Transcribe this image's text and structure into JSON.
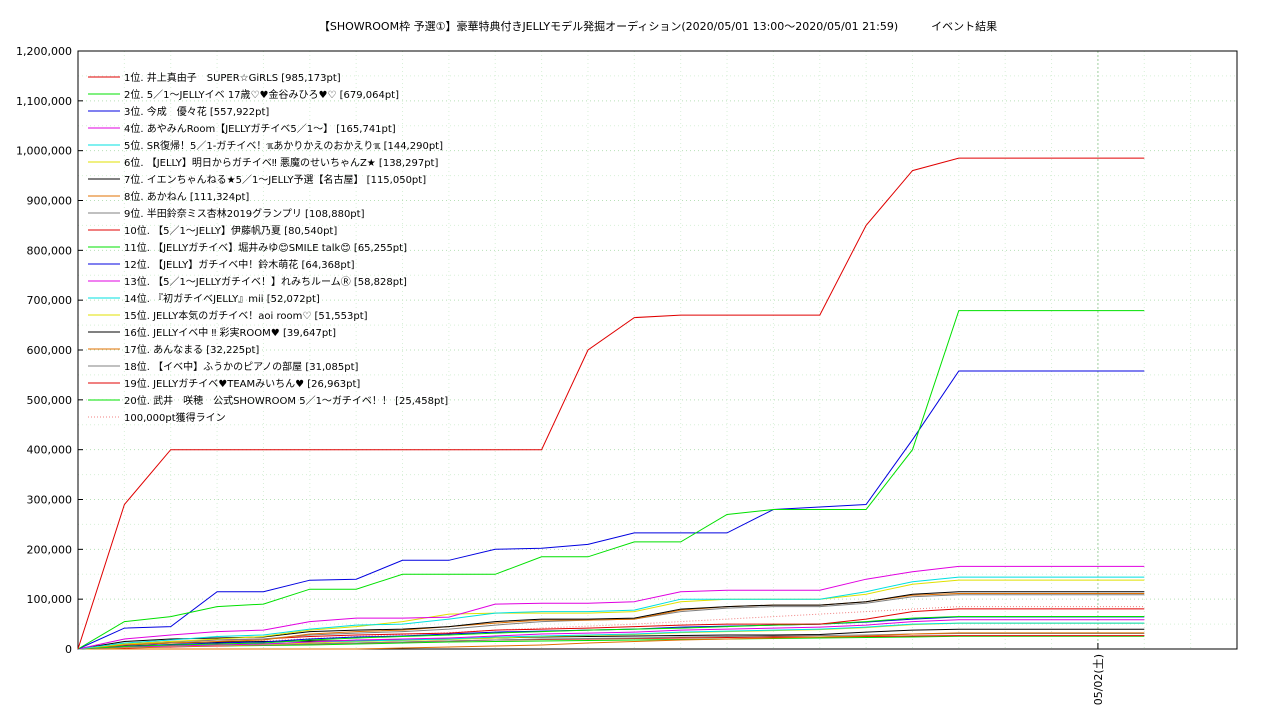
{
  "chart_data": {
    "type": "line",
    "title": "【SHOWROOM枠 予選①】豪華特典付きJELLYモデル発掘オーディション(2020/05/01 13:00〜2020/05/01 21:59)　　　イベント結果",
    "xlabel": "",
    "ylabel": "",
    "ylim": [
      0,
      1200000
    ],
    "yticks": [
      "0",
      "100,000",
      "200,000",
      "300,000",
      "400,000",
      "500,000",
      "600,000",
      "700,000",
      "800,000",
      "900,000",
      "1,000,000",
      "1,100,000",
      "1,200,000"
    ],
    "xlim": [
      "2020-05-01 13:00",
      "2020-05-02 01:30"
    ],
    "xtick_labels": [
      {
        "x": "2020-05-02 00:00",
        "label": "05/02(土)"
      }
    ],
    "grid": true,
    "legend_position": "top-left",
    "x": [
      "13:00",
      "13:30",
      "14:00",
      "14:30",
      "15:00",
      "15:30",
      "16:00",
      "16:30",
      "17:00",
      "17:30",
      "18:00",
      "18:30",
      "19:00",
      "19:30",
      "20:00",
      "20:30",
      "21:00",
      "21:30",
      "22:00",
      "22:30",
      "23:00",
      "23:30",
      "00:00",
      "00:30"
    ],
    "series": [
      {
        "name": "1位. 井上真由子　SUPER☆GiRLS [985,173pt]",
        "color": "#e00000",
        "values": [
          0,
          290000,
          400000,
          400000,
          400000,
          400000,
          400000,
          400000,
          400000,
          400000,
          400000,
          600000,
          665000,
          670000,
          670000,
          670000,
          670000,
          850000,
          960000,
          985173,
          985173,
          985173,
          985173,
          985173
        ]
      },
      {
        "name": "2位. 5／1〜JELLYイベ 17歳♡♥金谷みひろ♥♡ [679,064pt]",
        "color": "#00e000",
        "values": [
          0,
          55000,
          65000,
          85000,
          90000,
          120000,
          120000,
          150000,
          150000,
          150000,
          185000,
          185000,
          215000,
          215000,
          270000,
          280000,
          280000,
          280000,
          400000,
          679064,
          679064,
          679064,
          679064,
          679064
        ]
      },
      {
        "name": "3位. 今成　優々花 [557,922pt]",
        "color": "#0000e0",
        "values": [
          0,
          42000,
          45000,
          115000,
          115000,
          138000,
          140000,
          178000,
          178000,
          200000,
          202000,
          210000,
          233000,
          233000,
          233000,
          280000,
          285000,
          290000,
          420000,
          557922,
          557922,
          557922,
          557922,
          557922
        ]
      },
      {
        "name": "4位. あやみんRoom【JELLYガチイベ5／1〜】 [165,741pt]",
        "color": "#e000e0",
        "values": [
          0,
          20000,
          28000,
          35000,
          38000,
          55000,
          62000,
          62000,
          64000,
          90000,
          92000,
          92000,
          95000,
          115000,
          118000,
          118000,
          118000,
          140000,
          155000,
          165741,
          165741,
          165741,
          165741,
          165741
        ]
      },
      {
        "name": "5位. SR復帰！5／1-ガチイベ！ℼあかりかえのおかえりℼ [144,290pt]",
        "color": "#00e0e0",
        "values": [
          0,
          12000,
          18000,
          25000,
          28000,
          40000,
          48000,
          50000,
          60000,
          72000,
          75000,
          75000,
          78000,
          100000,
          100000,
          100000,
          100000,
          115000,
          135000,
          144290,
          144290,
          144290,
          144290,
          144290
        ]
      },
      {
        "name": "6位. 【JELLY】明日からガチイベ‼ 悪魔のせいちゃんZ★ [138,297pt]",
        "color": "#e0e000",
        "values": [
          0,
          10000,
          15000,
          20000,
          25000,
          38000,
          45000,
          55000,
          70000,
          72000,
          72000,
          72000,
          75000,
          95000,
          100000,
          100000,
          100000,
          110000,
          130000,
          138297,
          138297,
          138297,
          138297,
          138297
        ]
      },
      {
        "name": "7位. イエンちゃんねる★5／1〜JELLY予選【名古屋】 [115,050pt]",
        "color": "#000000",
        "values": [
          0,
          15000,
          20000,
          22000,
          24000,
          35000,
          38000,
          40000,
          45000,
          55000,
          60000,
          60000,
          62000,
          80000,
          85000,
          88000,
          88000,
          95000,
          110000,
          115050,
          115050,
          115050,
          115050,
          115050
        ]
      },
      {
        "name": "8位. あかねん [111,324pt]",
        "color": "#e07000",
        "values": [
          0,
          8000,
          12000,
          15000,
          18000,
          30000,
          35000,
          38000,
          45000,
          52000,
          58000,
          58000,
          60000,
          78000,
          85000,
          88000,
          88000,
          95000,
          108000,
          111324,
          111324,
          111324,
          111324,
          111324
        ]
      },
      {
        "name": "9位. 半田鈴奈ミス杏林2019グランプリ [108,880pt]",
        "color": "#808080",
        "values": [
          0,
          10000,
          14000,
          18000,
          20000,
          28000,
          32000,
          35000,
          40000,
          48000,
          55000,
          58000,
          60000,
          75000,
          82000,
          85000,
          85000,
          92000,
          105000,
          108880,
          108880,
          108880,
          108880,
          108880
        ]
      },
      {
        "name": "10位. 【5／1〜JELLY】伊藤帆乃夏 [80,540pt]",
        "color": "#e00000",
        "values": [
          0,
          10000,
          15000,
          18000,
          20000,
          25000,
          28000,
          30000,
          32000,
          38000,
          40000,
          42000,
          45000,
          48000,
          50000,
          50000,
          50000,
          60000,
          75000,
          80540,
          80540,
          80540,
          80540,
          80540
        ]
      },
      {
        "name": "11位. 【JELLYガチイベ】堀井みゆ😊SMILE talk😊 [65,255pt]",
        "color": "#00e000",
        "values": [
          0,
          5000,
          8000,
          10000,
          12000,
          18000,
          22000,
          25000,
          28000,
          32000,
          35000,
          38000,
          40000,
          42000,
          45000,
          48000,
          50000,
          55000,
          62000,
          65255,
          65255,
          65255,
          65255,
          65255
        ]
      },
      {
        "name": "12位. 【JELLY】ガチイベ中！鈴木萌花 [64,368pt]",
        "color": "#0000e0",
        "values": [
          0,
          6000,
          9000,
          12000,
          14000,
          20000,
          24000,
          26000,
          30000,
          34000,
          36000,
          38000,
          40000,
          44000,
          46000,
          48000,
          50000,
          54000,
          60000,
          64368,
          64368,
          64368,
          64368,
          64368
        ]
      },
      {
        "name": "13位. 【5／1〜JELLYガチイベ！】れみちルームⓇ [58,828pt]",
        "color": "#e000e0",
        "values": [
          0,
          4000,
          6000,
          8000,
          10000,
          14000,
          18000,
          20000,
          22000,
          26000,
          30000,
          32000,
          34000,
          38000,
          40000,
          42000,
          44000,
          48000,
          55000,
          58828,
          58828,
          58828,
          58828,
          58828
        ]
      },
      {
        "name": "14位. 『初ガチイベJELLY』mii [52,072pt]",
        "color": "#00e0e0",
        "values": [
          0,
          4000,
          6000,
          8000,
          10000,
          14000,
          16000,
          18000,
          20000,
          24000,
          26000,
          28000,
          30000,
          34000,
          36000,
          38000,
          40000,
          44000,
          50000,
          52072,
          52072,
          52072,
          52072,
          52072
        ]
      },
      {
        "name": "15位. JELLY本気のガチイベ！aoi room♡ [51,553pt]",
        "color": "#e0e000",
        "values": [
          0,
          3000,
          5000,
          7000,
          9000,
          12000,
          15000,
          17000,
          19000,
          22000,
          25000,
          27000,
          29000,
          33000,
          35000,
          37000,
          39000,
          43000,
          49000,
          51553,
          51553,
          51553,
          51553,
          51553
        ]
      },
      {
        "name": "16位. JELLYイベ中 ‼ 彩実ROOM♥ [39,647pt]",
        "color": "#000000",
        "values": [
          0,
          8000,
          12000,
          14000,
          15000,
          16000,
          17000,
          18000,
          20000,
          22000,
          24000,
          25000,
          26000,
          27000,
          28000,
          28000,
          29000,
          34000,
          38000,
          39647,
          39647,
          39647,
          39647,
          39647
        ]
      },
      {
        "name": "17位. あんなまる [32,225pt]",
        "color": "#e07000",
        "values": [
          0,
          0,
          0,
          0,
          0,
          0,
          0,
          2000,
          4000,
          6000,
          8000,
          12000,
          15000,
          18000,
          20000,
          22000,
          24000,
          26000,
          30000,
          32225,
          32225,
          32225,
          32225,
          32225
        ]
      },
      {
        "name": "18位. 【イベ中】ふうかのピアノの部屋 [31,085pt]",
        "color": "#808080",
        "values": [
          0,
          3000,
          5000,
          7000,
          8000,
          10000,
          12000,
          14000,
          16000,
          18000,
          20000,
          21000,
          22000,
          24000,
          25000,
          26000,
          27000,
          28000,
          30000,
          31085,
          31085,
          31085,
          31085,
          31085
        ]
      },
      {
        "name": "19位. JELLYガチイベ♥TEAMみいちん♥ [26,963pt]",
        "color": "#e00000",
        "values": [
          0,
          2000,
          4000,
          6000,
          8000,
          10000,
          12000,
          14000,
          16000,
          18000,
          19000,
          20000,
          21000,
          22000,
          23000,
          24000,
          24000,
          25000,
          26000,
          26963,
          26963,
          26963,
          26963,
          26963
        ]
      },
      {
        "name": "20位. 武井　咲穂　公式SHOWROOM 5／1〜ガチイベ！！ [25,458pt]",
        "color": "#00e000",
        "values": [
          0,
          3000,
          5000,
          6000,
          7000,
          8000,
          10000,
          12000,
          14000,
          15000,
          16000,
          17000,
          18000,
          19000,
          20000,
          21000,
          22000,
          23000,
          24000,
          25458,
          25458,
          25458,
          25458,
          25458
        ]
      },
      {
        "name": "100,000pt獲得ライン",
        "color": "#f08080",
        "dotted": true,
        "values": [
          0,
          4000,
          8000,
          12000,
          16000,
          21000,
          25000,
          29000,
          33000,
          38000,
          42000,
          46000,
          50000,
          55000,
          60000,
          65000,
          70000,
          75000,
          80000,
          85000,
          85000,
          85000,
          85000,
          85000
        ]
      }
    ]
  }
}
